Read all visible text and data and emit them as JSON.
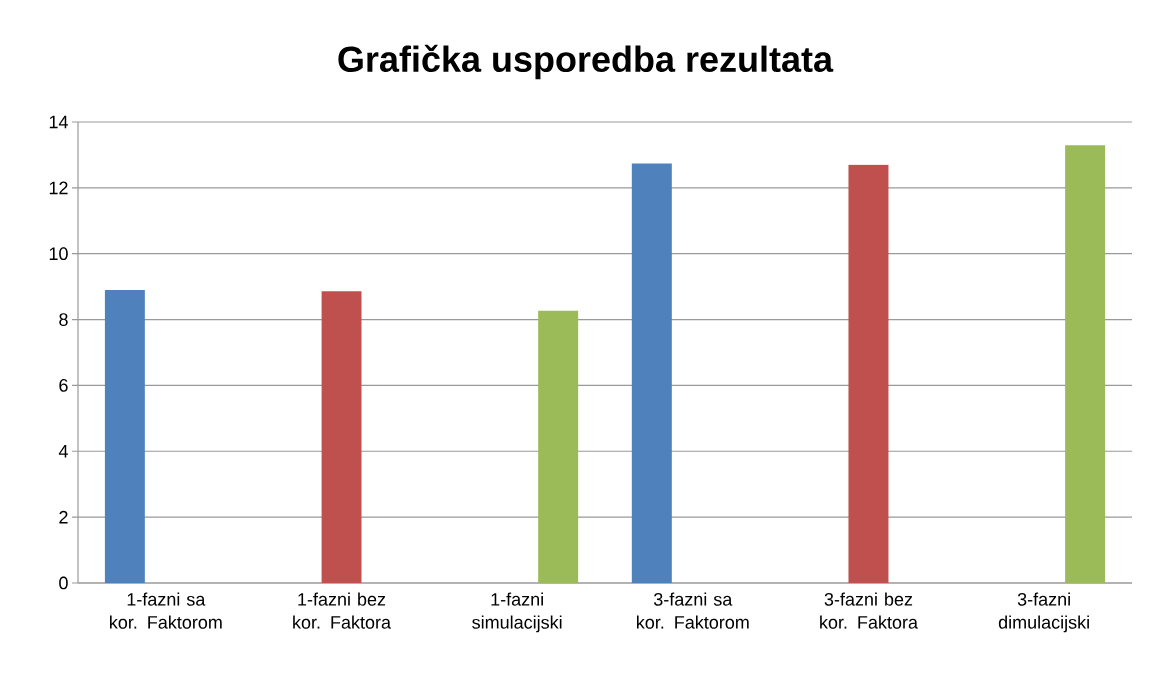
{
  "chart_data": {
    "type": "bar",
    "title": "Grafička usporedba rezultata",
    "categories": [
      "1-fazni sa kor. Faktorom",
      "1-fazni bez kor. Faktora",
      "1-fazni simulacijski",
      "3-fazni sa kor. Faktorom",
      "3-fazni bez kor. Faktora",
      "3-fazni dimulacijski"
    ],
    "series": [
      {
        "color": "#4f81bd",
        "values": [
          8.9,
          null,
          null,
          12.74,
          null,
          null
        ]
      },
      {
        "color": "#c0504d",
        "values": [
          null,
          8.86,
          null,
          null,
          12.7,
          null
        ]
      },
      {
        "color": "#9bbb59",
        "values": [
          null,
          null,
          8.27,
          null,
          null,
          13.29
        ]
      }
    ],
    "ylim": [
      0,
      14
    ],
    "yticks": [
      0,
      2,
      4,
      6,
      8,
      10,
      12,
      14
    ],
    "grid": "y"
  }
}
